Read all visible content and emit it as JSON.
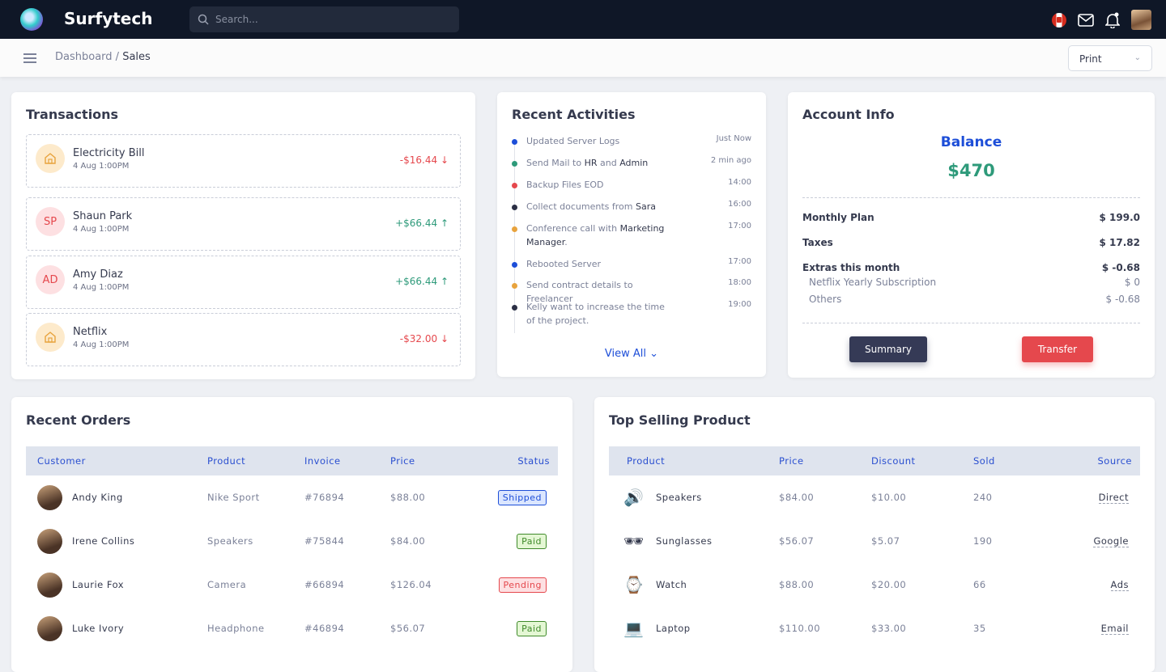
{
  "header": {
    "brand": "Surfytech",
    "search_placeholder": "Search...",
    "icons": [
      "canada-flag-icon",
      "mail-icon",
      "bell-icon",
      "user-avatar"
    ]
  },
  "breadcrumb": {
    "parent": "Dashboard",
    "separator": "/",
    "current": "Sales"
  },
  "print_select": {
    "value": "Print"
  },
  "transactions": {
    "title": "Transactions",
    "items": [
      {
        "icon": "home-icon",
        "initials": "",
        "name": "Electricity Bill",
        "date": "4 Aug 1:00PM",
        "amount": "-$16.44",
        "dir": "down"
      },
      {
        "icon": "",
        "initials": "SP",
        "name": "Shaun Park",
        "date": "4 Aug 1:00PM",
        "amount": "+$66.44",
        "dir": "up"
      },
      {
        "icon": "",
        "initials": "AD",
        "name": "Amy Diaz",
        "date": "4 Aug 1:00PM",
        "amount": "+$66.44",
        "dir": "up"
      },
      {
        "icon": "home-icon",
        "initials": "",
        "name": "Netflix",
        "date": "4 Aug 1:00PM",
        "amount": "-$32.00",
        "dir": "down"
      }
    ]
  },
  "activities": {
    "title": "Recent Activities",
    "view_all": "View All",
    "items": [
      {
        "pre": "Updated Server Logs",
        "b1": "",
        "mid": "",
        "b2": "",
        "post": "",
        "time": "Just Now",
        "color": "#1d4ed8"
      },
      {
        "pre": "Send Mail to ",
        "b1": "HR",
        "mid": " and ",
        "b2": "Admin",
        "post": "",
        "time": "2 min ago",
        "color": "#2e9a7a"
      },
      {
        "pre": "Backup Files EOD",
        "b1": "",
        "mid": "",
        "b2": "",
        "post": "",
        "time": "14:00",
        "color": "#e5484d"
      },
      {
        "pre": "Collect documents from ",
        "b1": "Sara",
        "mid": "",
        "b2": "",
        "post": "",
        "time": "16:00",
        "color": "#2b2f45"
      },
      {
        "pre": "Conference call with ",
        "b1": "Marketing Manager",
        "mid": "",
        "b2": "",
        "post": ".",
        "time": "17:00",
        "color": "#e8a33d"
      },
      {
        "pre": "Rebooted Server",
        "b1": "",
        "mid": "",
        "b2": "",
        "post": "",
        "time": "17:00",
        "color": "#1d4ed8"
      },
      {
        "pre": "Send contract details to Freelancer",
        "b1": "",
        "mid": "",
        "b2": "",
        "post": "",
        "time": "18:00",
        "color": "#e8a33d"
      },
      {
        "pre": "Kelly want to increase the time of the project.",
        "b1": "",
        "mid": "",
        "b2": "",
        "post": "",
        "time": "19:00",
        "color": "#2b2f45"
      }
    ]
  },
  "account": {
    "title": "Account Info",
    "balance_label": "Balance",
    "balance": "$470",
    "rows": [
      {
        "label": "Monthly Plan",
        "value": "$ 199.0"
      },
      {
        "label": "Taxes",
        "value": "$ 17.82"
      },
      {
        "label": "Extras this month",
        "value": "$ -0.68"
      }
    ],
    "subrows": [
      {
        "label": "Netflix Yearly Subscription",
        "value": "$ 0"
      },
      {
        "label": "Others",
        "value": "$ -0.68"
      }
    ],
    "summary": "Summary",
    "transfer": "Transfer"
  },
  "orders": {
    "title": "Recent Orders",
    "columns": [
      "Customer",
      "Product",
      "Invoice",
      "Price",
      "Status"
    ],
    "rows": [
      {
        "customer": "Andy King",
        "product": "Nike Sport",
        "invoice": "#76894",
        "price": "$88.00",
        "status": "Shipped"
      },
      {
        "customer": "Irene Collins",
        "product": "Speakers",
        "invoice": "#75844",
        "price": "$84.00",
        "status": "Paid"
      },
      {
        "customer": "Laurie Fox",
        "product": "Camera",
        "invoice": "#66894",
        "price": "$126.04",
        "status": "Pending"
      },
      {
        "customer": "Luke Ivory",
        "product": "Headphone",
        "invoice": "#46894",
        "price": "$56.07",
        "status": "Paid"
      }
    ]
  },
  "top": {
    "title": "Top Selling Product",
    "columns": [
      "Product",
      "Price",
      "Discount",
      "Sold",
      "Source"
    ],
    "rows": [
      {
        "icon": "speaker-icon",
        "glyph": "🔊",
        "product": "Speakers",
        "price": "$84.00",
        "discount": "$10.00",
        "sold": "240",
        "source": "Direct"
      },
      {
        "icon": "sunglasses-icon",
        "glyph": "🕶",
        "product": "Sunglasses",
        "price": "$56.07",
        "discount": "$5.07",
        "sold": "190",
        "source": "Google"
      },
      {
        "icon": "watch-icon",
        "glyph": "⌚",
        "product": "Watch",
        "price": "$88.00",
        "discount": "$20.00",
        "sold": "66",
        "source": "Ads"
      },
      {
        "icon": "laptop-icon",
        "glyph": "💻",
        "product": "Laptop",
        "price": "$110.00",
        "discount": "$33.00",
        "sold": "35",
        "source": "Email"
      }
    ]
  },
  "colors": {
    "accent": "#1d4ed8",
    "positive": "#2e9a7a",
    "negative": "#e5484d",
    "topbar": "#0f1727"
  }
}
